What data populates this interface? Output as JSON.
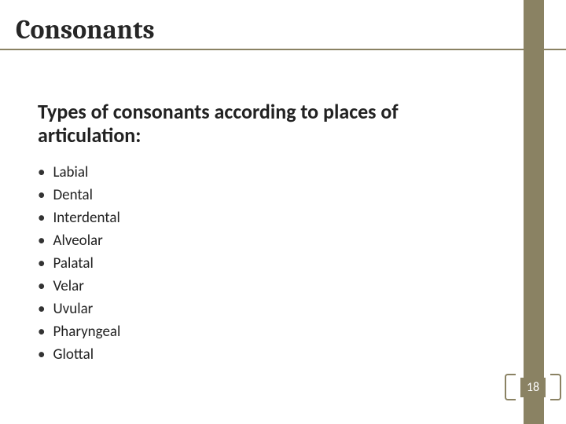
{
  "accent_color": "#8a8263",
  "title": "Consonants",
  "subtitle": "Types of consonants according to places of articulation:",
  "bullets": {
    "0": "Labial",
    "1": "Dental",
    "2": "Interdental",
    "3": "Alveolar",
    "4": "Palatal",
    "5": "Velar",
    "6": "Uvular",
    "7": "Pharyngeal",
    "8": "Glottal"
  },
  "page_number": "18"
}
